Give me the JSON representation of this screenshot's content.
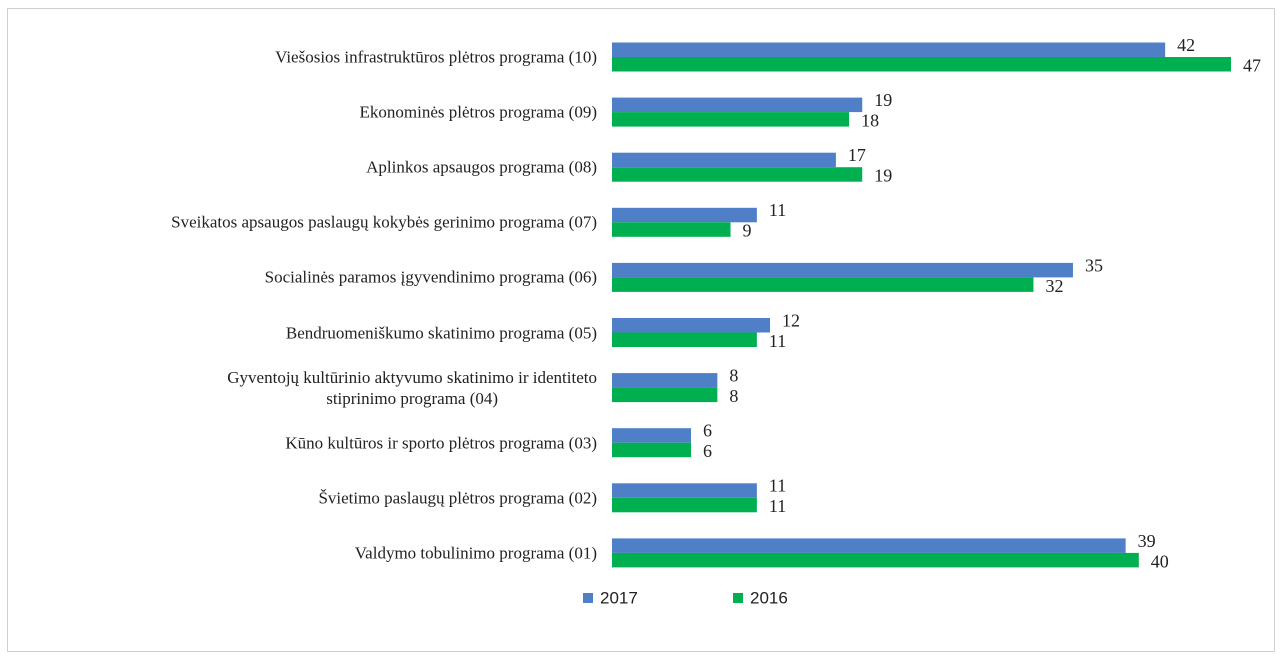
{
  "chart_data": {
    "type": "hbar",
    "categories": [
      "Viešosios infrastruktūros plėtros programa (10)",
      "Ekonominės plėtros programa (09)",
      "Aplinkos apsaugos programa (08)",
      "Sveikatos apsaugos paslaugų kokybės gerinimo programa (07)",
      "Socialinės paramos įgyvendinimo programa (06)",
      "Bendruomeniškumo skatinimo programa (05)",
      "Gyventojų kultūrinio aktyvumo skatinimo ir identiteto\nstiprinimo programa (04)",
      "Kūno kultūros ir sporto plėtros programa (03)",
      "Švietimo paslaugų plėtros programa (02)",
      "Valdymo tobulinimo programa (01)"
    ],
    "series": [
      {
        "name": "2017",
        "color": "#4f7fc7",
        "values": [
          42,
          19,
          17,
          11,
          35,
          12,
          8,
          6,
          11,
          39
        ]
      },
      {
        "name": "2016",
        "color": "#00b050",
        "values": [
          47,
          18,
          19,
          9,
          32,
          11,
          8,
          6,
          11,
          40
        ]
      }
    ],
    "legend": "bottom"
  }
}
